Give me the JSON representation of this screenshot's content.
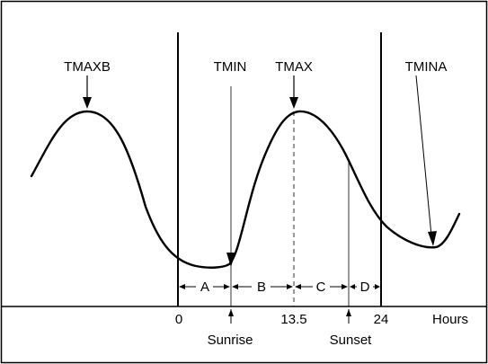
{
  "labels": {
    "tmaxb": "TMAXB",
    "tmin": "TMIN",
    "tmax": "TMAX",
    "tmina": "TMINA",
    "seg_a": "A",
    "seg_b": "B",
    "seg_c": "C",
    "seg_d": "D",
    "tick_0": "0",
    "tick_13_5": "13.5",
    "tick_24": "24",
    "hours": "Hours",
    "sunrise": "Sunrise",
    "sunset": "Sunset"
  },
  "colors": {
    "stroke": "#000000",
    "background": "#ffffff"
  }
}
